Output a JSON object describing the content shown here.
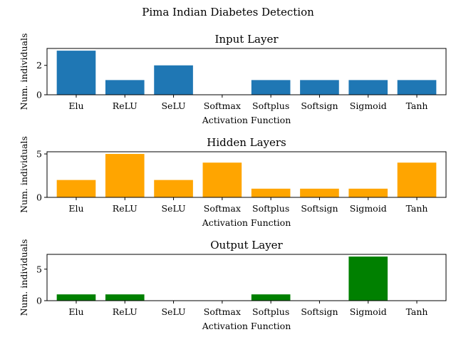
{
  "figure_title": "Pima Indian Diabetes Detection",
  "chart_data": [
    {
      "type": "bar",
      "title": "Input Layer",
      "xlabel": "Activation Function",
      "ylabel": "Num. individuals",
      "categories": [
        "Elu",
        "ReLU",
        "SeLU",
        "Softmax",
        "Softplus",
        "Softsign",
        "Sigmoid",
        "Tanh"
      ],
      "values": [
        3,
        1,
        2,
        0,
        1,
        1,
        1,
        1
      ],
      "color": "#1f77b4",
      "ylim": [
        0,
        3.15
      ],
      "yticks": [
        0,
        2
      ]
    },
    {
      "type": "bar",
      "title": "Hidden Layers",
      "xlabel": "Activation Function",
      "ylabel": "Num. individuals",
      "categories": [
        "Elu",
        "ReLU",
        "SeLU",
        "Softmax",
        "Softplus",
        "Softsign",
        "Sigmoid",
        "Tanh"
      ],
      "values": [
        2,
        5,
        2,
        4,
        1,
        1,
        1,
        4
      ],
      "color": "#ffa500",
      "ylim": [
        0,
        5.25
      ],
      "yticks": [
        0,
        5
      ]
    },
    {
      "type": "bar",
      "title": "Output Layer",
      "xlabel": "Activation Function",
      "ylabel": "Num. individuals",
      "categories": [
        "Elu",
        "ReLU",
        "SeLU",
        "Softmax",
        "Softplus",
        "Softsign",
        "Sigmoid",
        "Tanh"
      ],
      "values": [
        1,
        1,
        0,
        0,
        1,
        0,
        7,
        0
      ],
      "color": "#008000",
      "ylim": [
        0,
        7.35
      ],
      "yticks": [
        0,
        5
      ]
    }
  ]
}
